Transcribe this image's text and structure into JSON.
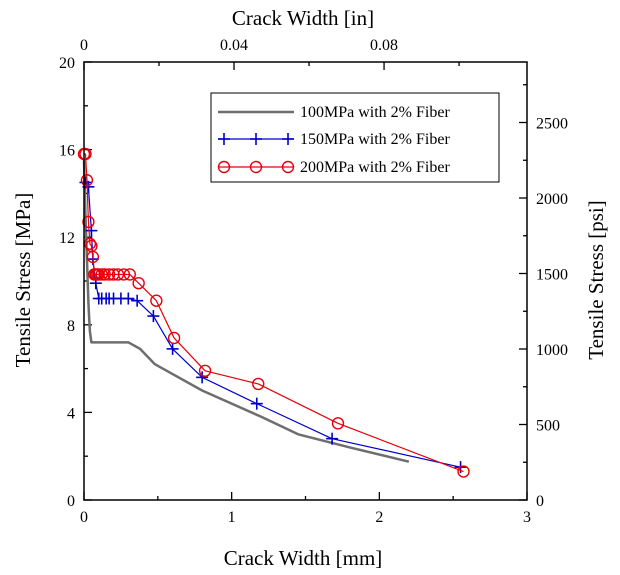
{
  "chart_data": {
    "type": "line",
    "xlabel_bottom": "Crack Width [mm]",
    "xlabel_top": "Crack Width [in]",
    "ylabel_left": "Tensile Stress [MPa]",
    "ylabel_right": "Tensile Stress [psi]",
    "xlim": [
      0,
      3
    ],
    "ylim": [
      0,
      20
    ],
    "xticks_bottom": [
      "0",
      "1",
      "2",
      "3"
    ],
    "yticks_left": [
      "0",
      "4",
      "8",
      "12",
      "16",
      "20"
    ],
    "xticks_top": [
      "0",
      "0.04",
      "0.08"
    ],
    "yticks_right": [
      "0",
      "500",
      "1000",
      "1500",
      "2000",
      "2500"
    ],
    "legend_position": "top-right",
    "series": [
      {
        "name": "100MPa with 2% Fiber",
        "color": "#6e6e6e",
        "marker": "none",
        "x": [
          0.0,
          0.005,
          0.01,
          0.015,
          0.02,
          0.025,
          0.03,
          0.035,
          0.04,
          0.05,
          0.06,
          0.1,
          0.2,
          0.3,
          0.38,
          0.48,
          0.8,
          1.2,
          1.45,
          1.8,
          2.2
        ],
        "y": [
          15.5,
          14.2,
          13.0,
          12.0,
          11.0,
          10.0,
          9.0,
          8.3,
          7.7,
          7.2,
          7.2,
          7.2,
          7.2,
          7.2,
          6.9,
          6.2,
          5.0,
          3.8,
          3.0,
          2.4,
          1.75
        ]
      },
      {
        "name": "150MPa with 2% Fiber",
        "color": "#0000cc",
        "marker": "plus",
        "x": [
          0.01,
          0.03,
          0.05,
          0.06,
          0.08,
          0.1,
          0.12,
          0.15,
          0.17,
          0.2,
          0.25,
          0.3,
          0.36,
          0.47,
          0.6,
          0.8,
          1.17,
          1.68,
          2.55
        ],
        "y": [
          14.5,
          14.3,
          12.3,
          11.0,
          9.9,
          9.2,
          9.2,
          9.2,
          9.2,
          9.2,
          9.2,
          9.2,
          9.1,
          8.4,
          6.9,
          5.6,
          4.4,
          2.8,
          1.5
        ]
      },
      {
        "name": "200MPa with 2% Fiber",
        "color": "#e8000b",
        "marker": "circle",
        "x": [
          0.0,
          0.01,
          0.02,
          0.03,
          0.04,
          0.05,
          0.06,
          0.07,
          0.08,
          0.09,
          0.1,
          0.12,
          0.14,
          0.17,
          0.2,
          0.23,
          0.27,
          0.31,
          0.37,
          0.49,
          0.61,
          0.82,
          1.18,
          1.72,
          2.57
        ],
        "y": [
          15.8,
          15.8,
          14.6,
          12.7,
          11.7,
          11.6,
          11.1,
          10.3,
          10.3,
          10.3,
          10.3,
          10.3,
          10.3,
          10.3,
          10.3,
          10.3,
          10.3,
          10.3,
          9.9,
          9.1,
          7.4,
          5.9,
          5.3,
          3.5,
          1.3
        ]
      }
    ]
  }
}
